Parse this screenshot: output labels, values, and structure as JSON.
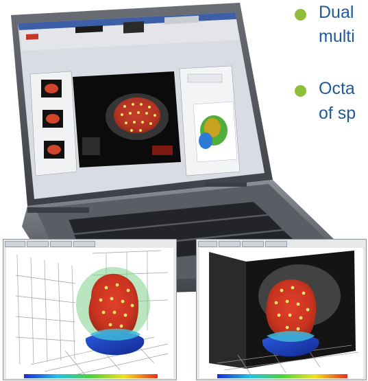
{
  "bullets": [
    {
      "line1": "Dual",
      "line2": "multi"
    },
    {
      "line1": "Octa",
      "line2": "of sp"
    }
  ],
  "insets": [
    {
      "name": "3d-render-left"
    },
    {
      "name": "3d-render-right"
    }
  ]
}
